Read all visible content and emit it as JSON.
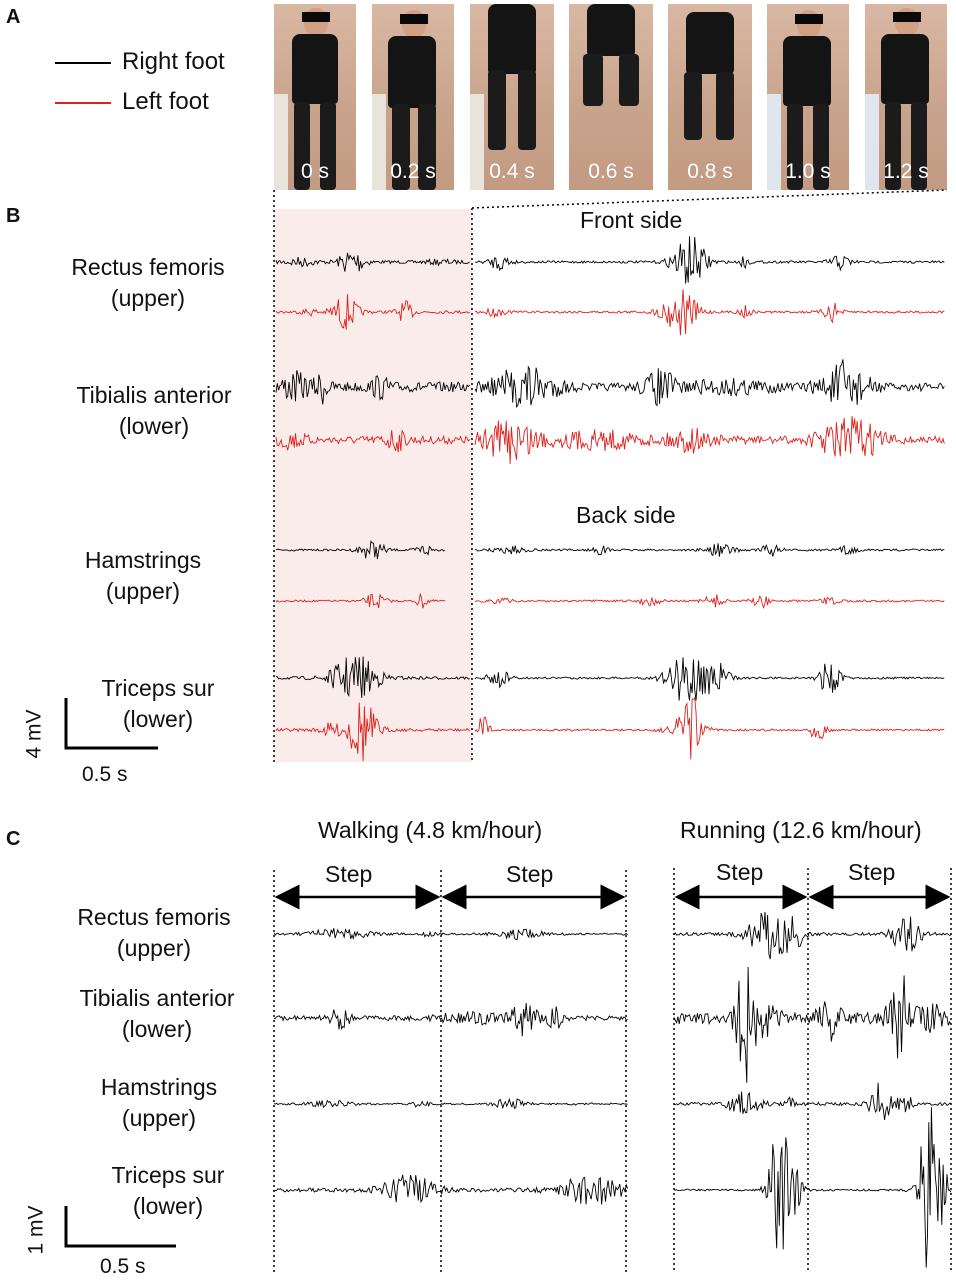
{
  "panels": {
    "a": "A",
    "b": "B",
    "c": "C"
  },
  "legend": [
    {
      "label": "Right foot",
      "color": "#000000"
    },
    {
      "label": "Left foot",
      "color": "#e0201b"
    }
  ],
  "frames": [
    "0 s",
    "0.2 s",
    "0.4 s",
    "0.6 s",
    "0.8 s",
    "1.0 s",
    "1.2 s"
  ],
  "panel_b": {
    "front_label": "Front side",
    "back_label": "Back side",
    "muscles": [
      {
        "line1": "Rectus femoris",
        "line2": "(upper)"
      },
      {
        "line1": "Tibialis anterior",
        "line2": "(lower)"
      },
      {
        "line1": "Hamstrings",
        "line2": "(upper)"
      },
      {
        "line1": "Triceps sur",
        "line2": "(lower)"
      }
    ],
    "scale_y": "4 mV",
    "scale_x": "0.5 s"
  },
  "panel_c": {
    "walking_title": "Walking (4.8 km/hour)",
    "running_title": "Running (12.6 km/hour)",
    "step_label": "Step",
    "muscles": [
      {
        "line1": "Rectus femoris",
        "line2": "(upper)"
      },
      {
        "line1": "Tibialis anterior",
        "line2": "(lower)"
      },
      {
        "line1": "Hamstrings",
        "line2": "(upper)"
      },
      {
        "line1": "Triceps sur",
        "line2": "(lower)"
      }
    ],
    "scale_y": "1 mV",
    "scale_x": "0.5 s"
  },
  "colors": {
    "right": "#000000",
    "left": "#e0201b",
    "shade": "#fbecec"
  }
}
